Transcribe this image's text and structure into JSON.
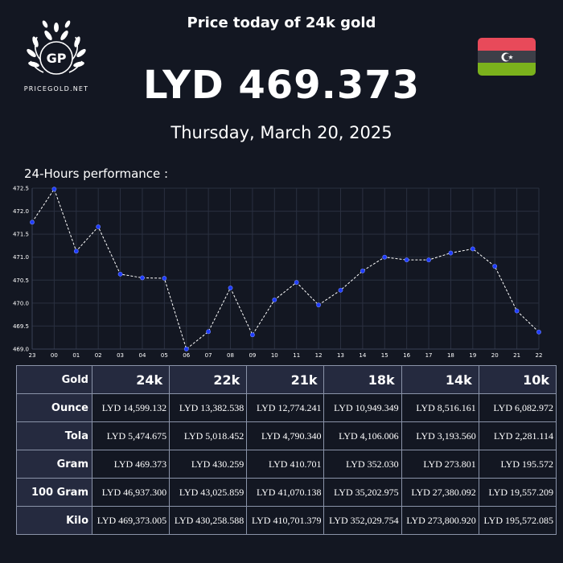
{
  "brand": {
    "name": "PRICEGOLD.NET",
    "initials": "GP"
  },
  "headline": "Price today of 24k gold",
  "price": "LYD 469.373",
  "date": "Thursday, March 20, 2025",
  "performance_label": "24-Hours performance :",
  "colors": {
    "background": "#131722",
    "line": "#ffffff",
    "point": "#1f3cff",
    "grid": "#2a3040",
    "flag_red": "#e84a5a",
    "flag_black": "#3d3f48",
    "flag_green": "#7bb21c"
  },
  "chart_data": {
    "type": "line",
    "title": "",
    "xlabel": "",
    "ylabel": "",
    "x": [
      "23",
      "00",
      "01",
      "02",
      "03",
      "04",
      "05",
      "06",
      "07",
      "08",
      "09",
      "10",
      "11",
      "12",
      "13",
      "14",
      "15",
      "16",
      "17",
      "18",
      "19",
      "20",
      "21",
      "22"
    ],
    "ylim": [
      469.0,
      472.5
    ],
    "yticks": [
      "469.0",
      "469.5",
      "470.0",
      "470.5",
      "471.0",
      "471.5",
      "472.0",
      "472.5"
    ],
    "grid": true,
    "series": [
      {
        "values": [
          471.76,
          472.48,
          471.13,
          471.66,
          470.63,
          470.55,
          470.54,
          469.0,
          469.38,
          470.33,
          469.31,
          470.07,
          470.45,
          469.96,
          470.28,
          470.7,
          471.0,
          470.94,
          470.94,
          471.09,
          471.18,
          470.8,
          469.83,
          469.37
        ]
      }
    ]
  },
  "table": {
    "corner": "Gold",
    "columns": [
      "24k",
      "22k",
      "21k",
      "18k",
      "14k",
      "10k"
    ],
    "rows": [
      {
        "label": "Ounce",
        "values": [
          "LYD 14,599.132",
          "LYD 13,382.538",
          "LYD 12,774.241",
          "LYD 10,949.349",
          "LYD 8,516.161",
          "LYD 6,082.972"
        ]
      },
      {
        "label": "Tola",
        "values": [
          "LYD 5,474.675",
          "LYD 5,018.452",
          "LYD 4,790.340",
          "LYD 4,106.006",
          "LYD 3,193.560",
          "LYD 2,281.114"
        ]
      },
      {
        "label": "Gram",
        "values": [
          "LYD 469.373",
          "LYD 430.259",
          "LYD 410.701",
          "LYD 352.030",
          "LYD 273.801",
          "LYD 195.572"
        ]
      },
      {
        "label": "100 Gram",
        "values": [
          "LYD 46,937.300",
          "LYD 43,025.859",
          "LYD 41,070.138",
          "LYD 35,202.975",
          "LYD 27,380.092",
          "LYD 19,557.209"
        ]
      },
      {
        "label": "Kilo",
        "values": [
          "LYD 469,373.005",
          "LYD 430,258.588",
          "LYD 410,701.379",
          "LYD 352,029.754",
          "LYD 273,800.920",
          "LYD 195,572.085"
        ]
      }
    ]
  }
}
